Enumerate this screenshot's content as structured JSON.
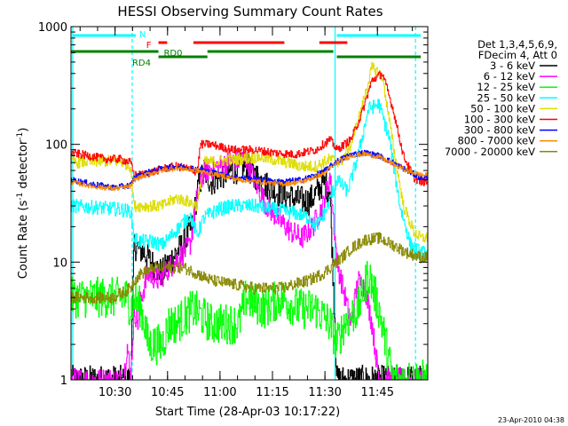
{
  "chart_data": {
    "type": "line",
    "title": "HESSI Observing Summary Count Rates",
    "xlabel": "Start Time (28-Apr-03 10:17:22)",
    "ylabel_base": "Count Rate (s",
    "ylabel_sup1": "-1",
    "ylabel_mid": " detector",
    "ylabel_sup2": "-1",
    "ylabel_end": ")",
    "x_unit": "minutes after 10:17:22 UT",
    "xlim": [
      0,
      102
    ],
    "ylim": [
      1,
      1000
    ],
    "yscale": "log",
    "x_tick_labels": [
      {
        "label": "10:30",
        "t": 12.6
      },
      {
        "label": "10:45",
        "t": 27.6
      },
      {
        "label": "11:00",
        "t": 42.6
      },
      {
        "label": "11:15",
        "t": 57.6
      },
      {
        "label": "11:30",
        "t": 72.6
      },
      {
        "label": "11:45",
        "t": 87.6
      }
    ],
    "y_tick_labels": [
      {
        "label": "1",
        "v": 1
      },
      {
        "label": "10",
        "v": 10
      },
      {
        "label": "100",
        "v": 100
      },
      {
        "label": "1000",
        "v": 1000
      }
    ],
    "legend_header": [
      "Det 1,3,4,5,6,9,",
      "FDecim 4, Att 0"
    ],
    "legend_position": "right",
    "footer_timestamp": "23-Apr-2010 04:38",
    "vlines": [
      {
        "t": 0.5,
        "style": "solid",
        "color": "#00ffff"
      },
      {
        "t": 17.5,
        "style": "dashed",
        "color": "#00ffff"
      },
      {
        "t": 75.5,
        "style": "solid",
        "color": "#00ffff"
      },
      {
        "t": 98.5,
        "style": "dashed",
        "color": "#00ffff"
      }
    ],
    "flag_bars": [
      {
        "name": "N",
        "color": "#00ffff",
        "y": 40,
        "label_x": 19.5,
        "label_y": 38,
        "segments": [
          [
            0.5,
            18.5
          ],
          [
            76,
            100
          ]
        ]
      },
      {
        "name": "F",
        "color": "#ff0000",
        "y": 48,
        "label_x": 21.5,
        "label_y": 50,
        "segments": [
          [
            25,
            27.5
          ],
          [
            35,
            61
          ],
          [
            71,
            79
          ]
        ]
      },
      {
        "name": "RD0",
        "color": "#008000",
        "y": 58,
        "label_x": 26.5,
        "label_y": 59,
        "segments": [
          [
            0,
            25
          ],
          [
            39,
            75
          ]
        ]
      },
      {
        "name": "RD4",
        "color": "#008000",
        "y": 64,
        "label_x": 17.5,
        "label_y": 70,
        "segments": [
          [
            25,
            39
          ],
          [
            76,
            100
          ]
        ]
      }
    ],
    "series": [
      {
        "name": "3 - 6 keV",
        "color": "#000000",
        "noise": 0.25,
        "points": [
          [
            0,
            1
          ],
          [
            17,
            1
          ],
          [
            18,
            14
          ],
          [
            21,
            12
          ],
          [
            24,
            9
          ],
          [
            26,
            8
          ],
          [
            28,
            10
          ],
          [
            30,
            12
          ],
          [
            32,
            14
          ],
          [
            35,
            22
          ],
          [
            36,
            40
          ],
          [
            38,
            60
          ],
          [
            40,
            48
          ],
          [
            43,
            55
          ],
          [
            46,
            60
          ],
          [
            50,
            65
          ],
          [
            54,
            50
          ],
          [
            57,
            42
          ],
          [
            60,
            38
          ],
          [
            64,
            34
          ],
          [
            68,
            33
          ],
          [
            70,
            38
          ],
          [
            72,
            48
          ],
          [
            74,
            40
          ],
          [
            76,
            1
          ],
          [
            100,
            1
          ]
        ]
      },
      {
        "name": "6 - 12 keV",
        "color": "#ff00ff",
        "noise": 0.2,
        "points": [
          [
            0,
            1
          ],
          [
            15,
            1
          ],
          [
            16,
            2
          ],
          [
            17,
            1
          ],
          [
            18,
            4
          ],
          [
            19,
            3
          ],
          [
            20,
            5
          ],
          [
            22,
            8
          ],
          [
            25,
            7
          ],
          [
            28,
            9
          ],
          [
            31,
            11
          ],
          [
            34,
            14
          ],
          [
            36,
            35
          ],
          [
            38,
            60
          ],
          [
            42,
            65
          ],
          [
            46,
            72
          ],
          [
            50,
            75
          ],
          [
            53,
            45
          ],
          [
            56,
            30
          ],
          [
            60,
            22
          ],
          [
            63,
            18
          ],
          [
            66,
            16
          ],
          [
            69,
            20
          ],
          [
            72,
            30
          ],
          [
            74,
            55
          ],
          [
            76,
            10
          ],
          [
            80,
            3
          ],
          [
            82,
            7
          ],
          [
            84,
            6
          ],
          [
            86,
            3
          ],
          [
            88,
            1
          ],
          [
            100,
            1
          ]
        ]
      },
      {
        "name": "12 - 25 keV",
        "color": "#00ff00",
        "noise": 0.35,
        "points": [
          [
            0,
            5
          ],
          [
            16,
            5
          ],
          [
            17,
            4
          ],
          [
            18,
            5
          ],
          [
            20,
            4
          ],
          [
            21,
            3
          ],
          [
            22,
            2
          ],
          [
            26,
            2
          ],
          [
            28,
            3
          ],
          [
            30,
            3
          ],
          [
            35,
            4
          ],
          [
            40,
            3
          ],
          [
            48,
            3
          ],
          [
            50,
            5
          ],
          [
            55,
            4
          ],
          [
            60,
            5
          ],
          [
            65,
            4
          ],
          [
            70,
            4
          ],
          [
            74,
            3
          ],
          [
            76,
            2
          ],
          [
            78,
            3
          ],
          [
            82,
            4
          ],
          [
            85,
            8
          ],
          [
            88,
            4
          ],
          [
            90,
            2
          ],
          [
            92,
            1
          ],
          [
            100,
            1
          ]
        ]
      },
      {
        "name": "25 - 50 keV",
        "color": "#00ffff",
        "noise": 0.12,
        "points": [
          [
            0,
            30
          ],
          [
            8,
            29
          ],
          [
            14,
            28
          ],
          [
            17,
            27
          ],
          [
            18,
            16
          ],
          [
            20,
            15
          ],
          [
            23,
            15
          ],
          [
            26,
            14
          ],
          [
            28,
            16
          ],
          [
            31,
            20
          ],
          [
            34,
            25
          ],
          [
            36,
            17
          ],
          [
            38,
            24
          ],
          [
            42,
            28
          ],
          [
            46,
            30
          ],
          [
            52,
            30
          ],
          [
            58,
            28
          ],
          [
            64,
            26
          ],
          [
            68,
            24
          ],
          [
            70,
            20
          ],
          [
            73,
            28
          ],
          [
            76,
            50
          ],
          [
            79,
            40
          ],
          [
            82,
            80
          ],
          [
            85,
            200
          ],
          [
            88,
            220
          ],
          [
            91,
            110
          ],
          [
            94,
            30
          ],
          [
            97,
            14
          ],
          [
            100,
            12
          ]
        ]
      },
      {
        "name": "50 - 100 keV",
        "color": "#dddd00",
        "noise": 0.1,
        "points": [
          [
            0,
            70
          ],
          [
            8,
            72
          ],
          [
            14,
            72
          ],
          [
            17,
            65
          ],
          [
            18,
            30
          ],
          [
            20,
            30
          ],
          [
            22,
            30
          ],
          [
            26,
            30
          ],
          [
            30,
            35
          ],
          [
            33,
            33
          ],
          [
            36,
            30
          ],
          [
            38,
            70
          ],
          [
            42,
            72
          ],
          [
            48,
            75
          ],
          [
            54,
            78
          ],
          [
            60,
            72
          ],
          [
            66,
            65
          ],
          [
            70,
            65
          ],
          [
            74,
            75
          ],
          [
            77,
            70
          ],
          [
            80,
            100
          ],
          [
            83,
            200
          ],
          [
            86,
            450
          ],
          [
            89,
            380
          ],
          [
            92,
            100
          ],
          [
            95,
            30
          ],
          [
            98,
            18
          ],
          [
            100,
            16
          ]
        ]
      },
      {
        "name": "100 - 300 keV",
        "color": "#ff0000",
        "noise": 0.07,
        "points": [
          [
            0,
            85
          ],
          [
            5,
            80
          ],
          [
            10,
            75
          ],
          [
            14,
            75
          ],
          [
            17,
            70
          ],
          [
            18,
            55
          ],
          [
            20,
            55
          ],
          [
            23,
            58
          ],
          [
            26,
            62
          ],
          [
            30,
            65
          ],
          [
            34,
            62
          ],
          [
            36,
            58
          ],
          [
            37,
            100
          ],
          [
            40,
            100
          ],
          [
            46,
            90
          ],
          [
            52,
            90
          ],
          [
            58,
            85
          ],
          [
            64,
            82
          ],
          [
            70,
            90
          ],
          [
            74,
            110
          ],
          [
            76,
            90
          ],
          [
            80,
            110
          ],
          [
            83,
            180
          ],
          [
            86,
            350
          ],
          [
            89,
            400
          ],
          [
            92,
            200
          ],
          [
            95,
            80
          ],
          [
            98,
            52
          ],
          [
            100,
            48
          ]
        ]
      },
      {
        "name": "300 - 800 keV",
        "color": "#0000ff",
        "noise": 0.05,
        "points": [
          [
            0,
            50
          ],
          [
            6,
            46
          ],
          [
            12,
            43
          ],
          [
            17,
            45
          ],
          [
            18,
            52
          ],
          [
            22,
            58
          ],
          [
            26,
            62
          ],
          [
            30,
            65
          ],
          [
            36,
            62
          ],
          [
            42,
            56
          ],
          [
            48,
            52
          ],
          [
            54,
            50
          ],
          [
            60,
            48
          ],
          [
            66,
            50
          ],
          [
            72,
            58
          ],
          [
            76,
            72
          ],
          [
            80,
            82
          ],
          [
            84,
            85
          ],
          [
            88,
            80
          ],
          [
            92,
            70
          ],
          [
            96,
            60
          ],
          [
            100,
            52
          ]
        ]
      },
      {
        "name": "800 - 7000 keV",
        "color": "#ff8800",
        "noise": 0.04,
        "points": [
          [
            0,
            48
          ],
          [
            6,
            44
          ],
          [
            12,
            42
          ],
          [
            17,
            44
          ],
          [
            18,
            50
          ],
          [
            22,
            56
          ],
          [
            26,
            60
          ],
          [
            30,
            63
          ],
          [
            36,
            60
          ],
          [
            42,
            55
          ],
          [
            48,
            50
          ],
          [
            54,
            48
          ],
          [
            60,
            46
          ],
          [
            66,
            48
          ],
          [
            72,
            56
          ],
          [
            76,
            70
          ],
          [
            80,
            80
          ],
          [
            84,
            83
          ],
          [
            88,
            78
          ],
          [
            92,
            68
          ],
          [
            96,
            60
          ],
          [
            100,
            55
          ]
        ]
      },
      {
        "name": "7000 - 20000 keV",
        "color": "#888800",
        "noise": 0.1,
        "points": [
          [
            0,
            5
          ],
          [
            6,
            5
          ],
          [
            12,
            5
          ],
          [
            17,
            6
          ],
          [
            18,
            7
          ],
          [
            20,
            8
          ],
          [
            24,
            9
          ],
          [
            28,
            9
          ],
          [
            32,
            9
          ],
          [
            36,
            8
          ],
          [
            40,
            7
          ],
          [
            46,
            6.5
          ],
          [
            52,
            6
          ],
          [
            56,
            6
          ],
          [
            60,
            6
          ],
          [
            64,
            6.5
          ],
          [
            68,
            7
          ],
          [
            72,
            8
          ],
          [
            76,
            10
          ],
          [
            80,
            13
          ],
          [
            84,
            15.5
          ],
          [
            88,
            16
          ],
          [
            92,
            14
          ],
          [
            96,
            12
          ],
          [
            100,
            11
          ]
        ]
      }
    ]
  }
}
